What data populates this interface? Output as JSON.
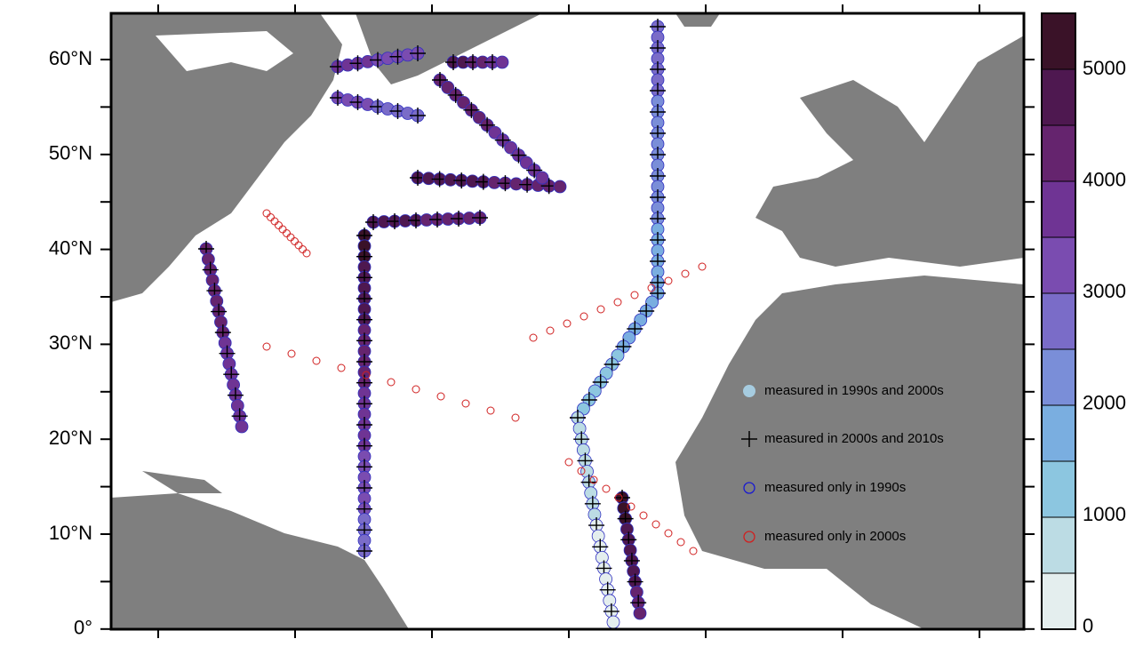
{
  "map": {
    "lat_labels": [
      "60°N",
      "50°N",
      "40°N",
      "30°N",
      "20°N",
      "10°N",
      "0°"
    ],
    "colorbar": {
      "labels": [
        5000,
        4000,
        3000,
        2000,
        1000,
        0
      ],
      "colors": [
        "#3a1228",
        "#4e1850",
        "#65246e",
        "#6f3494",
        "#7a4cb0",
        "#7a6cc8",
        "#7a8ed8",
        "#7aaee0",
        "#8cc6e0",
        "#bcdce4",
        "#e4eeee"
      ]
    },
    "legend": [
      "measured in 1990s and 2000s",
      "measured in 2000s and 2010s",
      "measured only in 1990s",
      "measured only in 2000s"
    ]
  }
}
